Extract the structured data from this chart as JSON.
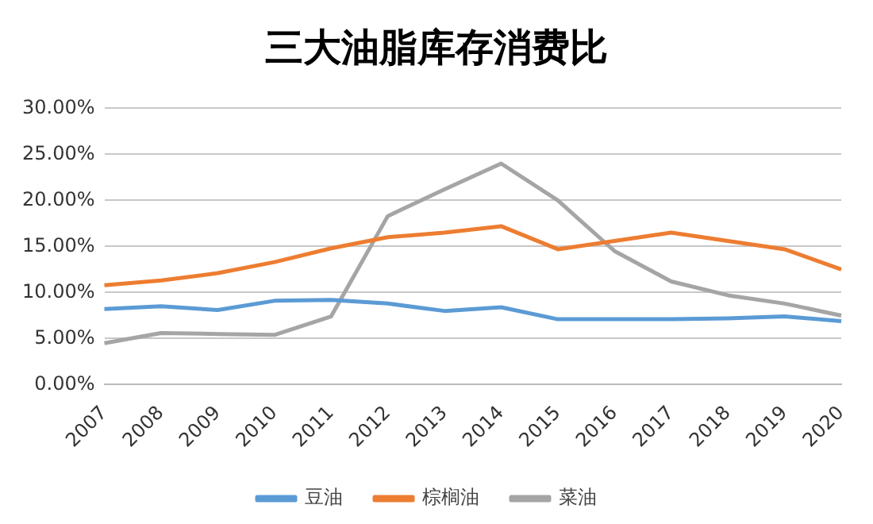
{
  "chart_data": {
    "type": "line",
    "title": "三大油脂库存消费比",
    "categories": [
      "2007",
      "2008",
      "2009",
      "2010",
      "2011",
      "2012",
      "2013",
      "2014",
      "2015",
      "2016",
      "2017",
      "2018",
      "2019",
      "2020"
    ],
    "series": [
      {
        "name": "豆油",
        "color": "#5b9bd5",
        "values": [
          8.2,
          8.5,
          8.1,
          9.1,
          9.2,
          8.8,
          8.0,
          8.4,
          7.1,
          7.1,
          7.1,
          7.2,
          7.4,
          6.9
        ]
      },
      {
        "name": "棕榈油",
        "color": "#ed7d31",
        "values": [
          10.8,
          11.3,
          12.1,
          13.3,
          14.8,
          16.0,
          16.5,
          17.2,
          14.7,
          15.6,
          16.5,
          15.6,
          14.7,
          12.5
        ]
      },
      {
        "name": "菜油",
        "color": "#a5a5a5",
        "values": [
          4.5,
          5.6,
          5.5,
          5.4,
          7.4,
          18.3,
          21.2,
          24.0,
          20.0,
          14.5,
          11.2,
          9.7,
          8.8,
          7.5
        ]
      }
    ],
    "ylim": [
      0,
      30
    ],
    "yticks": [
      {
        "value": 0,
        "label": "0.00%"
      },
      {
        "value": 5,
        "label": "5.00%"
      },
      {
        "value": 10,
        "label": "10.00%"
      },
      {
        "value": 15,
        "label": "15.00%"
      },
      {
        "value": 20,
        "label": "20.00%"
      },
      {
        "value": 25,
        "label": "25.00%"
      },
      {
        "value": 30,
        "label": "30.00%"
      }
    ],
    "grid": "y",
    "legend": "bottom",
    "marker": "none",
    "line_style": "solid"
  }
}
